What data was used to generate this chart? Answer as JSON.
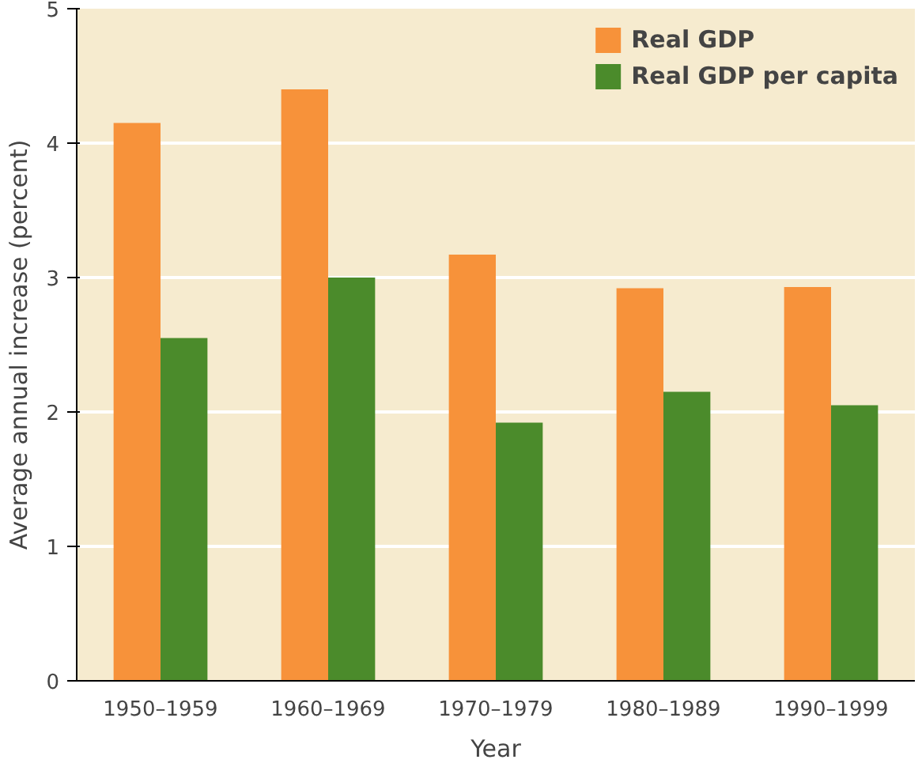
{
  "chart_data": {
    "type": "bar",
    "xlabel": "Year",
    "ylabel": "Average annual increase (percent)",
    "categories": [
      "1950–1959",
      "1960–1969",
      "1970–1979",
      "1980–1989",
      "1990–1999"
    ],
    "series": [
      {
        "name": "Real GDP",
        "color": "#f7923a",
        "values": [
          4.15,
          4.4,
          3.17,
          2.92,
          2.93
        ]
      },
      {
        "name": "Real GDP per capita",
        "color": "#4b8b2b",
        "values": [
          2.55,
          3.0,
          1.92,
          2.15,
          2.05
        ]
      }
    ],
    "ylim": [
      0,
      5
    ],
    "yticks": [
      0,
      1,
      2,
      3,
      4,
      5
    ],
    "grid": "y",
    "legend": "top right"
  }
}
